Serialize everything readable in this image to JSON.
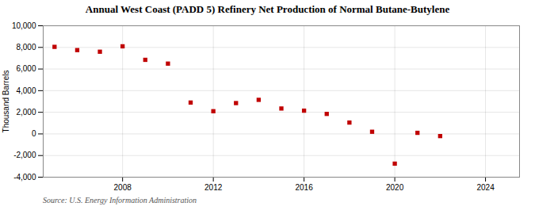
{
  "chart_data": {
    "type": "scatter",
    "title": "Annual West Coast (PADD 5) Refinery Net Production of Normal Butane-Butylene",
    "ylabel": "Thousand Barrels",
    "source": "Source: U.S. Energy Information Administration",
    "x": [
      2005,
      2006,
      2007,
      2008,
      2009,
      2010,
      2011,
      2012,
      2013,
      2014,
      2015,
      2016,
      2017,
      2018,
      2019,
      2020,
      2021,
      2022
    ],
    "values": [
      8050,
      7750,
      7600,
      8100,
      6850,
      6500,
      2900,
      2100,
      2850,
      3150,
      2350,
      2150,
      1850,
      1050,
      200,
      -2750,
      100,
      -200
    ],
    "color": "#c00000",
    "marker": "square",
    "xlim": [
      2004.5,
      2025.5
    ],
    "xticks": [
      2008,
      2012,
      2016,
      2020,
      2024
    ],
    "ylim": [
      -4000,
      10000
    ],
    "yticks": [
      {
        "value": -4000,
        "label": "-4,000"
      },
      {
        "value": -2000,
        "label": "-2,000"
      },
      0,
      {
        "value": 2000,
        "label": "2,000"
      },
      {
        "value": 4000,
        "label": "4,000"
      },
      {
        "value": 6000,
        "label": "6,000"
      },
      {
        "value": 8000,
        "label": "8,000"
      },
      {
        "value": 10000,
        "label": "10,000"
      }
    ],
    "grid": true
  }
}
